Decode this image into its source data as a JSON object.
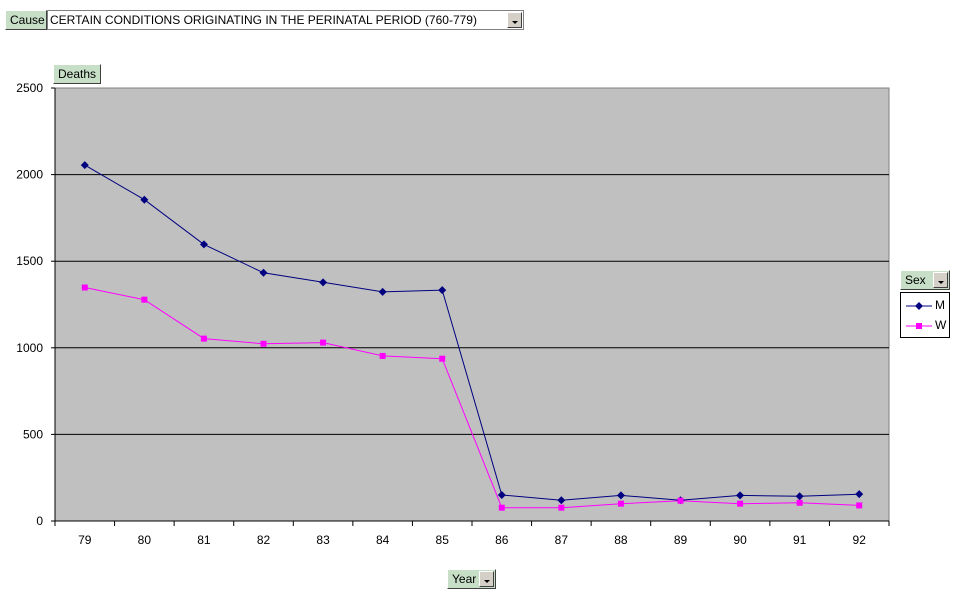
{
  "page_filter": {
    "field_label": "Cause",
    "selected_value": "CERTAIN CONDITIONS ORIGINATING IN THE PERINATAL PERIOD (760-779)"
  },
  "data_field": {
    "label": "Deaths"
  },
  "row_field": {
    "label": "Year"
  },
  "series_field": {
    "label": "Sex"
  },
  "chart_data": {
    "type": "line",
    "x": [
      "79",
      "80",
      "81",
      "82",
      "83",
      "84",
      "85",
      "86",
      "87",
      "88",
      "89",
      "90",
      "91",
      "92"
    ],
    "series": [
      {
        "name": "M",
        "color": "#000080",
        "marker": "diamond",
        "values": [
          2055,
          1855,
          1597,
          1433,
          1378,
          1323,
          1333,
          150,
          120,
          148,
          120,
          148,
          143,
          155
        ]
      },
      {
        "name": "W",
        "color": "#ff00ff",
        "marker": "square",
        "values": [
          1348,
          1278,
          1053,
          1023,
          1030,
          953,
          937,
          77,
          77,
          100,
          117,
          100,
          105,
          90
        ]
      }
    ],
    "ylim": [
      0,
      2500
    ],
    "yticks": [
      "0",
      "500",
      "1000",
      "1500",
      "2000",
      "2500"
    ],
    "grid": true,
    "plot_background": "#c0c0c0",
    "legend_position": "right"
  }
}
